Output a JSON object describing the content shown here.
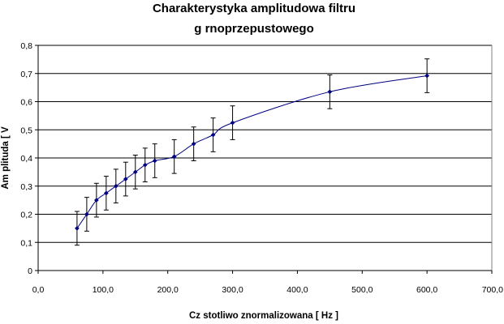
{
  "chart_data": {
    "type": "line",
    "title_lines": [
      "Charakterystyka amplitudowa filtru",
      "g  rnoprzepustowego"
    ],
    "xlabel": "Cz  stotliwo    znormalizowana [ Hz ]",
    "ylabel": "Am plituda  [ V",
    "xlim": [
      0,
      700
    ],
    "ylim": [
      0,
      0.8
    ],
    "x_ticks": [
      0,
      100,
      200,
      300,
      400,
      500,
      600,
      700
    ],
    "x_tick_labels": [
      "0,0",
      "100,0",
      "200,0",
      "300,0",
      "400,0",
      "500,0",
      "600,0",
      "700,0"
    ],
    "y_ticks": [
      0,
      0.1,
      0.2,
      0.3,
      0.4,
      0.5,
      0.6,
      0.7,
      0.8
    ],
    "y_tick_labels": [
      "0",
      "0,1",
      "0,2",
      "0,3",
      "0,4",
      "0,5",
      "0,6",
      "0,7",
      "0,8"
    ],
    "grid": "horizontal",
    "legend": "none",
    "series": [
      {
        "x": [
          60,
          75,
          90,
          105,
          120,
          135,
          150,
          165,
          180,
          210,
          240,
          270,
          300,
          450,
          600
        ],
        "y": [
          0.15,
          0.2,
          0.25,
          0.275,
          0.3,
          0.325,
          0.35,
          0.375,
          0.39,
          0.405,
          0.45,
          0.482,
          0.525,
          0.635,
          0.692
        ],
        "error": [
          0.06,
          0.06,
          0.06,
          0.06,
          0.06,
          0.06,
          0.06,
          0.06,
          0.06,
          0.06,
          0.06,
          0.06,
          0.06,
          0.06,
          0.06
        ]
      }
    ],
    "colors": {
      "series": "#000080",
      "grid": "#000000",
      "error_bar": "#000000"
    }
  }
}
